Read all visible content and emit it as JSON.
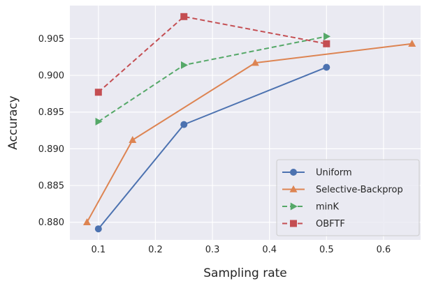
{
  "chart_data": {
    "type": "line",
    "title": "",
    "xlabel": "Sampling rate",
    "ylabel": "Accuracy",
    "xlim": [
      0.05,
      0.665
    ],
    "ylim": [
      0.8776,
      0.9095
    ],
    "xticks": [
      0.1,
      0.2,
      0.3,
      0.4,
      0.5,
      0.6
    ],
    "xtick_labels": [
      "0.1",
      "0.2",
      "0.3",
      "0.4",
      "0.5",
      "0.6"
    ],
    "yticks": [
      0.88,
      0.885,
      0.89,
      0.895,
      0.9,
      0.905
    ],
    "ytick_labels": [
      "0.880",
      "0.885",
      "0.890",
      "0.895",
      "0.900",
      "0.905"
    ],
    "grid": true,
    "background": "#eaeaf2",
    "legend_position": "bottom-right",
    "series": [
      {
        "name": "Uniform",
        "color": "#4c72b0",
        "marker": "circle",
        "dashed": false,
        "x": [
          0.1,
          0.25,
          0.5
        ],
        "y": [
          0.8791,
          0.8933,
          0.9011
        ]
      },
      {
        "name": "Selective-Backprop",
        "color": "#dd8452",
        "marker": "triangle-up",
        "dashed": false,
        "x": [
          0.08,
          0.16,
          0.375,
          0.65
        ],
        "y": [
          0.88,
          0.8912,
          0.9017,
          0.9043
        ]
      },
      {
        "name": "minK",
        "color": "#55a868",
        "marker": "triangle-right",
        "dashed": true,
        "x": [
          0.1,
          0.25,
          0.5
        ],
        "y": [
          0.8937,
          0.9014,
          0.9053
        ]
      },
      {
        "name": "OBFTF",
        "color": "#c44e52",
        "marker": "square",
        "dashed": true,
        "x": [
          0.1,
          0.25,
          0.5
        ],
        "y": [
          0.8977,
          0.908,
          0.9043
        ]
      }
    ]
  }
}
